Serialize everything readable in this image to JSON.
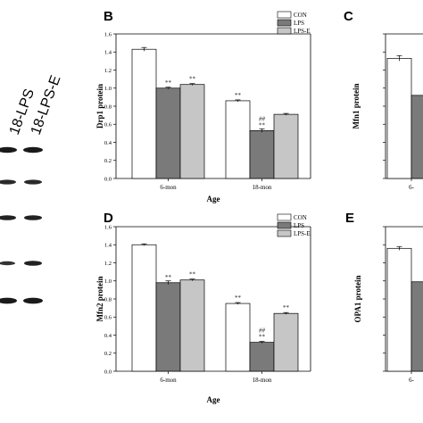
{
  "lane_labels": [
    "18-LPS",
    "18-LPS-E"
  ],
  "colors": {
    "CON": "#ffffff",
    "LPS": "#7a7a7a",
    "LPS-E": "#c6c6c6",
    "axis": "#000000"
  },
  "chart_data": [
    {
      "panel": "B",
      "type": "bar",
      "ylabel": "Drp1 protein",
      "xlabel": "Age",
      "ylim": [
        0,
        1.6
      ],
      "yticks": [
        "0.0",
        "0.2",
        "0.4",
        "0.6",
        "0.8",
        "1.0",
        "1.2",
        "1.4",
        "1.6"
      ],
      "categories": [
        "6-mon",
        "18-mon"
      ],
      "legend": [
        "CON",
        "LPS",
        "LPS-E"
      ],
      "legend_position": "top-right",
      "series": [
        {
          "name": "CON",
          "values": [
            1.43,
            0.86
          ],
          "errors": [
            0.02,
            0.01
          ],
          "labels": [
            "",
            "**"
          ]
        },
        {
          "name": "LPS",
          "values": [
            1.0,
            0.53
          ],
          "errors": [
            0.01,
            0.02
          ],
          "labels": [
            "**",
            "**"
          ]
        },
        {
          "name": "LPS-E",
          "values": [
            1.04,
            0.71
          ],
          "errors": [
            0.01,
            0.01
          ],
          "labels": [
            "**",
            ""
          ]
        }
      ],
      "extra_labels": [
        {
          "series": 1,
          "category": 1,
          "text": "##"
        }
      ]
    },
    {
      "panel": "C",
      "type": "bar",
      "ylabel": "Mfn1 protein",
      "xlabel": "",
      "ylim": [
        0,
        1.6
      ],
      "categories": [
        "6-"
      ],
      "series": [
        {
          "name": "CON",
          "values": [
            1.33
          ],
          "errors": [
            0.03
          ]
        },
        {
          "name": "LPS",
          "values": [
            0.92
          ],
          "errors": [
            0.0
          ]
        }
      ]
    },
    {
      "panel": "D",
      "type": "bar",
      "ylabel": "Mfn2 protein",
      "xlabel": "Age",
      "ylim": [
        0,
        1.6
      ],
      "yticks": [
        "0.0",
        "0.2",
        "0.4",
        "0.6",
        "0.8",
        "1.0",
        "1.2",
        "1.4",
        "1.6"
      ],
      "categories": [
        "6-mon",
        "18-mon"
      ],
      "legend": [
        "CON",
        "LPS",
        "LPS-E"
      ],
      "legend_position": "top-right",
      "series": [
        {
          "name": "CON",
          "values": [
            1.4,
            0.75
          ],
          "errors": [
            0.01,
            0.01
          ],
          "labels": [
            "",
            "**"
          ]
        },
        {
          "name": "LPS",
          "values": [
            0.98,
            0.32
          ],
          "errors": [
            0.02,
            0.01
          ],
          "labels": [
            "**",
            "**"
          ]
        },
        {
          "name": "LPS-E",
          "values": [
            1.01,
            0.64
          ],
          "errors": [
            0.01,
            0.01
          ],
          "labels": [
            "**",
            "**"
          ]
        }
      ],
      "extra_labels": [
        {
          "series": 1,
          "category": 1,
          "text": "##"
        }
      ]
    },
    {
      "panel": "E",
      "type": "bar",
      "ylabel": "OPA1 protein",
      "xlabel": "",
      "ylim": [
        0,
        1.6
      ],
      "categories": [
        "6-"
      ],
      "series": [
        {
          "name": "CON",
          "values": [
            1.36
          ],
          "errors": [
            0.02
          ]
        },
        {
          "name": "LPS",
          "values": [
            0.99
          ],
          "errors": [
            0.0
          ]
        }
      ]
    }
  ]
}
